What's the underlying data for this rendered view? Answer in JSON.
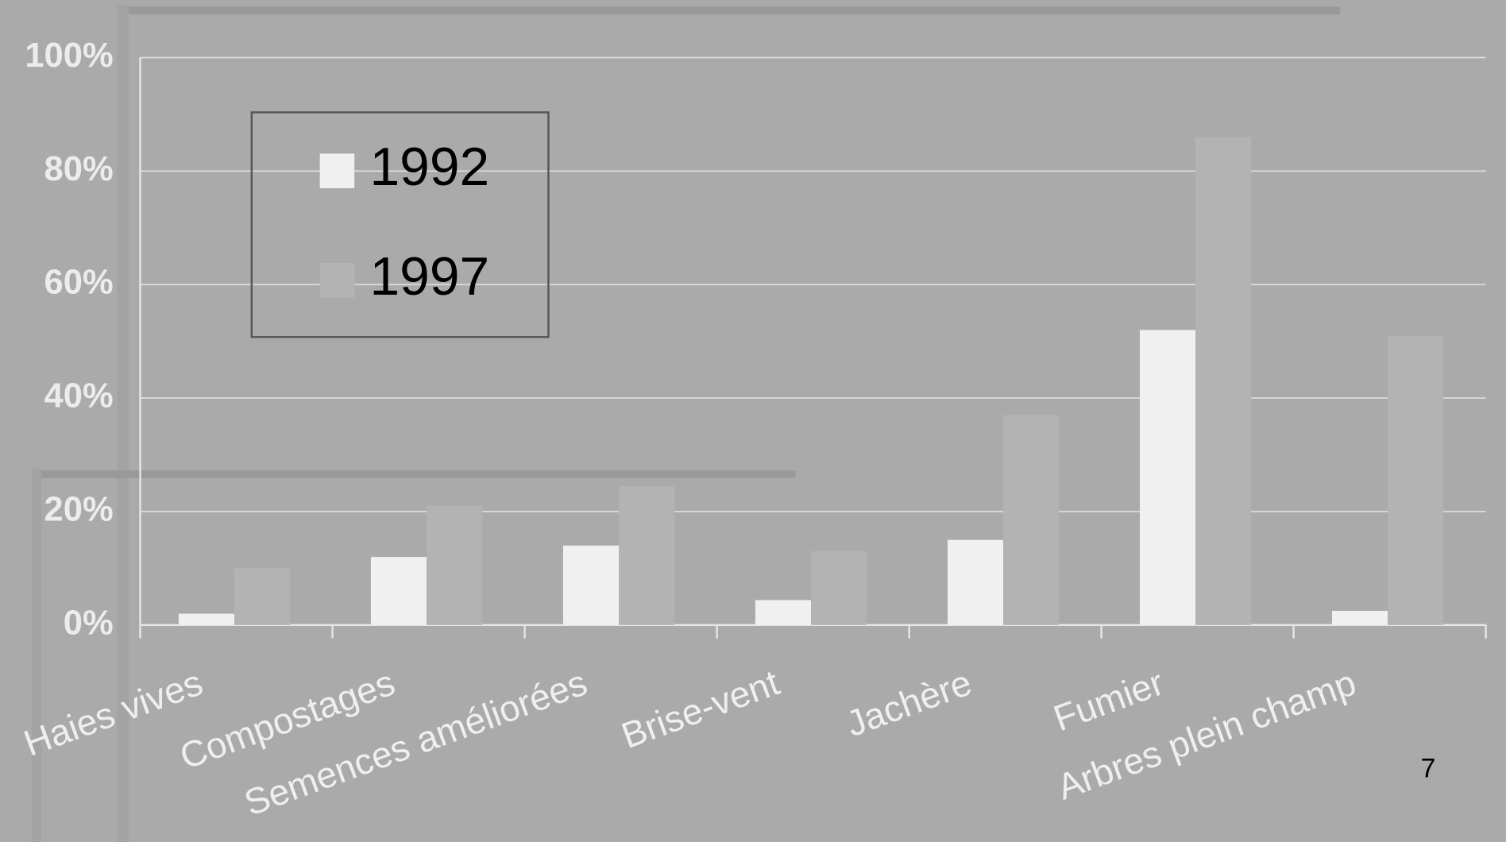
{
  "chart_data": {
    "type": "bar",
    "categories": [
      "Haies vives",
      "Compostages",
      "Semences améliorées",
      "Brise-vent",
      "Jachère",
      "Fumier",
      "Arbres plein champ"
    ],
    "series": [
      {
        "name": "1992",
        "color": "#f0f0f0",
        "values": [
          2,
          12,
          14,
          4.4,
          15,
          52,
          2.5
        ]
      },
      {
        "name": "1997",
        "color": "#b3b3b3",
        "values": [
          10,
          21,
          24.5,
          13,
          37,
          86,
          51
        ]
      }
    ],
    "ylim": [
      0,
      100
    ],
    "yticks": [
      {
        "value": 0,
        "label": "0%"
      },
      {
        "value": 20,
        "label": "20%"
      },
      {
        "value": 40,
        "label": "40%"
      },
      {
        "value": 60,
        "label": "60%"
      },
      {
        "value": 80,
        "label": "80%"
      },
      {
        "value": 100,
        "label": "100%"
      }
    ],
    "grid": true,
    "legend": "upper left"
  },
  "page_number": "7"
}
